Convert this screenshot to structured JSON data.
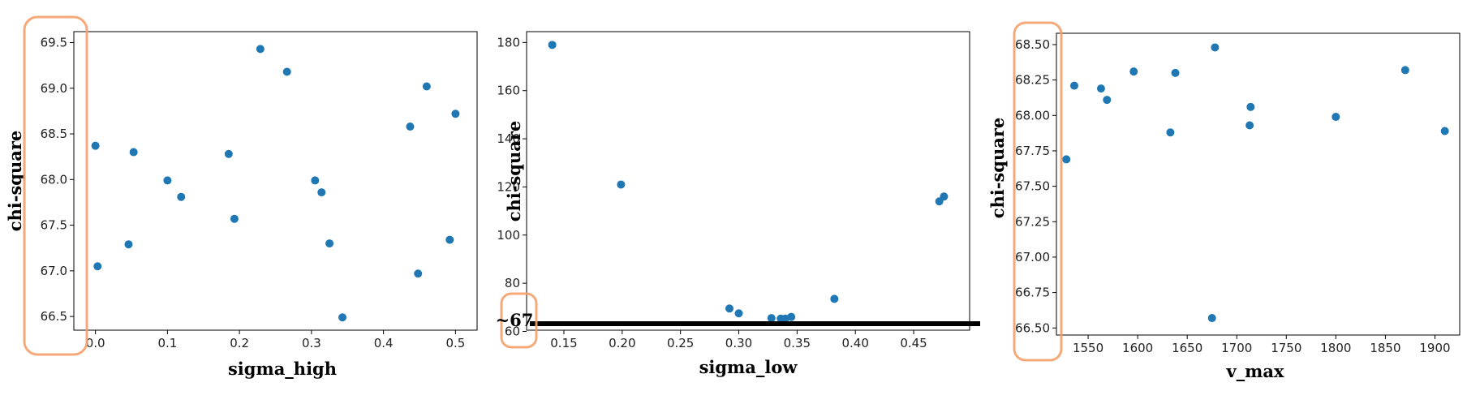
{
  "colors": {
    "point": "#1f77b4",
    "highlight": "#f4a06a",
    "axis": "#000000",
    "reference_line": "#000000"
  },
  "chart_data": [
    {
      "type": "scatter",
      "xlabel": "sigma_high",
      "ylabel": "chi-square",
      "xlim": [
        -0.03,
        0.53
      ],
      "ylim": [
        66.35,
        69.62
      ],
      "xticks": [
        "0.0",
        "0.1",
        "0.2",
        "0.3",
        "0.4",
        "0.5"
      ],
      "xtick_values": [
        0.0,
        0.1,
        0.2,
        0.3,
        0.4,
        0.5
      ],
      "yticks": [
        "66.5",
        "67.0",
        "67.5",
        "68.0",
        "68.5",
        "69.0",
        "69.5"
      ],
      "ytick_values": [
        66.5,
        67.0,
        67.5,
        68.0,
        68.5,
        69.0,
        69.5
      ],
      "grid": false,
      "points": [
        {
          "x": 0.0,
          "y": 68.37
        },
        {
          "x": 0.003,
          "y": 67.05
        },
        {
          "x": 0.046,
          "y": 67.29
        },
        {
          "x": 0.053,
          "y": 68.3
        },
        {
          "x": 0.1,
          "y": 67.99
        },
        {
          "x": 0.119,
          "y": 67.81
        },
        {
          "x": 0.185,
          "y": 68.28
        },
        {
          "x": 0.193,
          "y": 67.57
        },
        {
          "x": 0.229,
          "y": 69.43
        },
        {
          "x": 0.266,
          "y": 69.18
        },
        {
          "x": 0.305,
          "y": 67.99
        },
        {
          "x": 0.314,
          "y": 67.86
        },
        {
          "x": 0.325,
          "y": 67.3
        },
        {
          "x": 0.343,
          "y": 66.49
        },
        {
          "x": 0.437,
          "y": 68.58
        },
        {
          "x": 0.448,
          "y": 66.97
        },
        {
          "x": 0.46,
          "y": 69.02
        },
        {
          "x": 0.492,
          "y": 67.34
        },
        {
          "x": 0.5,
          "y": 68.72
        }
      ]
    },
    {
      "type": "scatter",
      "xlabel": "sigma_low",
      "ylabel": "chi-square",
      "xlim": [
        0.118,
        0.498
      ],
      "ylim": [
        60.5,
        184.5
      ],
      "xticks": [
        "0.15",
        "0.20",
        "0.25",
        "0.30",
        "0.35",
        "0.40",
        "0.45"
      ],
      "xtick_values": [
        0.15,
        0.2,
        0.25,
        0.3,
        0.35,
        0.4,
        0.45
      ],
      "yticks": [
        "60",
        "80",
        "100",
        "120",
        "140",
        "160",
        "180"
      ],
      "ytick_values": [
        60,
        80,
        100,
        120,
        140,
        160,
        180
      ],
      "grid": false,
      "points": [
        {
          "x": 0.14,
          "y": 179
        },
        {
          "x": 0.199,
          "y": 121
        },
        {
          "x": 0.292,
          "y": 69.5
        },
        {
          "x": 0.3,
          "y": 67.5
        },
        {
          "x": 0.328,
          "y": 65.5
        },
        {
          "x": 0.336,
          "y": 65.3
        },
        {
          "x": 0.34,
          "y": 65.3
        },
        {
          "x": 0.345,
          "y": 66
        },
        {
          "x": 0.382,
          "y": 73.5
        },
        {
          "x": 0.472,
          "y": 114
        },
        {
          "x": 0.476,
          "y": 116
        }
      ],
      "reference_line": {
        "y": 64,
        "label": "~67"
      }
    },
    {
      "type": "scatter",
      "xlabel": "v_max",
      "ylabel": "chi-square",
      "xlim": [
        1518,
        1925
      ],
      "ylim": [
        66.45,
        68.58
      ],
      "xticks": [
        "1550",
        "1600",
        "1650",
        "1700",
        "1750",
        "1800",
        "1850",
        "1900"
      ],
      "xtick_values": [
        1550,
        1600,
        1650,
        1700,
        1750,
        1800,
        1850,
        1900
      ],
      "yticks": [
        "66.50",
        "66.75",
        "67.00",
        "67.25",
        "67.50",
        "67.75",
        "68.00",
        "68.25",
        "68.50"
      ],
      "ytick_values": [
        66.5,
        66.75,
        67.0,
        67.25,
        67.5,
        67.75,
        68.0,
        68.25,
        68.5
      ],
      "grid": false,
      "points": [
        {
          "x": 1528,
          "y": 67.69
        },
        {
          "x": 1536,
          "y": 68.21
        },
        {
          "x": 1563,
          "y": 68.19
        },
        {
          "x": 1569,
          "y": 68.11
        },
        {
          "x": 1596,
          "y": 68.31
        },
        {
          "x": 1633,
          "y": 67.88
        },
        {
          "x": 1638,
          "y": 68.3
        },
        {
          "x": 1675,
          "y": 66.57
        },
        {
          "x": 1678,
          "y": 68.48
        },
        {
          "x": 1713,
          "y": 67.93
        },
        {
          "x": 1714,
          "y": 68.06
        },
        {
          "x": 1800,
          "y": 67.99
        },
        {
          "x": 1870,
          "y": 68.32
        },
        {
          "x": 1910,
          "y": 67.89
        }
      ]
    }
  ]
}
